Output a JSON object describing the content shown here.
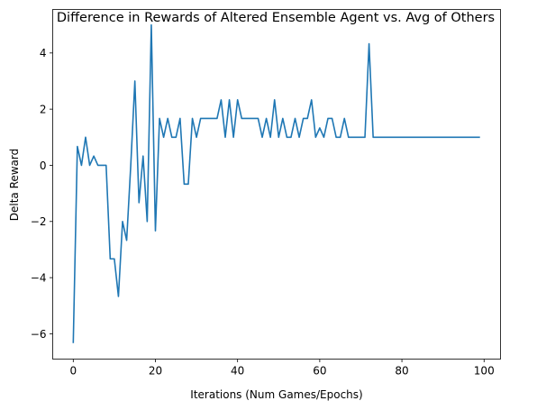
{
  "chart_data": {
    "type": "line",
    "title": "Difference in Rewards of Altered Ensemble Agent vs. Avg of Others",
    "xlabel": "Iterations (Num Games/Epochs)",
    "ylabel": "Delta Reward",
    "xlim": [
      -5,
      104
    ],
    "ylim": [
      -6.9,
      5.55
    ],
    "x_ticks": [
      0,
      20,
      40,
      60,
      80,
      100
    ],
    "y_ticks": [
      -6,
      -4,
      -2,
      0,
      2,
      4
    ],
    "grid": false,
    "line_color": "#1f77b4",
    "series": [
      {
        "name": "delta_reward",
        "x": [
          0,
          1,
          2,
          3,
          4,
          5,
          6,
          7,
          8,
          9,
          10,
          11,
          12,
          13,
          14,
          15,
          16,
          17,
          18,
          19,
          20,
          21,
          22,
          23,
          24,
          25,
          26,
          27,
          28,
          29,
          30,
          31,
          32,
          33,
          34,
          35,
          36,
          37,
          38,
          39,
          40,
          41,
          42,
          43,
          44,
          45,
          46,
          47,
          48,
          49,
          50,
          51,
          52,
          53,
          54,
          55,
          56,
          57,
          58,
          59,
          60,
          61,
          62,
          63,
          64,
          65,
          66,
          67,
          68,
          69,
          70,
          71,
          72,
          73,
          74,
          75,
          76,
          77,
          78,
          79,
          80,
          81,
          82,
          83,
          84,
          85,
          86,
          87,
          88,
          89,
          90,
          91,
          92,
          93,
          94,
          95,
          96,
          97,
          98,
          99
        ],
        "values": [
          -6.33,
          0.67,
          0.0,
          1.0,
          0.0,
          0.33,
          0.0,
          0.0,
          0.0,
          -3.33,
          -3.33,
          -4.67,
          -2.0,
          -2.67,
          0.0,
          3.0,
          -1.33,
          0.33,
          -2.0,
          5.0,
          -2.33,
          1.67,
          1.0,
          1.67,
          1.0,
          1.0,
          1.67,
          -0.67,
          -0.67,
          1.67,
          1.0,
          1.67,
          1.67,
          1.67,
          1.67,
          1.67,
          2.33,
          1.0,
          2.33,
          1.0,
          2.33,
          1.67,
          1.67,
          1.67,
          1.67,
          1.67,
          1.0,
          1.67,
          1.0,
          2.33,
          1.0,
          1.67,
          1.0,
          1.0,
          1.67,
          1.0,
          1.67,
          1.67,
          2.33,
          1.0,
          1.33,
          1.0,
          1.67,
          1.67,
          1.0,
          1.0,
          1.67,
          1.0,
          1.0,
          1.0,
          1.0,
          1.0,
          4.33,
          1.0,
          1.0,
          1.0,
          1.0,
          1.0,
          1.0,
          1.0,
          1.0,
          1.0,
          1.0,
          1.0,
          1.0,
          1.0,
          1.0,
          1.0,
          1.0,
          1.0,
          1.0,
          1.0,
          1.0,
          1.0,
          1.0,
          1.0,
          1.0,
          1.0,
          1.0,
          1.0
        ]
      }
    ]
  }
}
